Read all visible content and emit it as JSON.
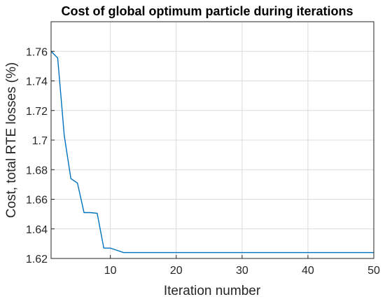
{
  "chart_data": {
    "type": "line",
    "title": "Cost of global optimum particle during iterations",
    "xlabel": "Iteration number",
    "ylabel": "Cost, total RTE losses (%)",
    "xlim": [
      1,
      50
    ],
    "ylim": [
      1.62,
      1.78
    ],
    "xticks": [
      10,
      20,
      30,
      40,
      50
    ],
    "xtick_labels": [
      "10",
      "20",
      "30",
      "40",
      "50"
    ],
    "yticks": [
      1.62,
      1.64,
      1.66,
      1.68,
      1.7,
      1.72,
      1.74,
      1.76
    ],
    "ytick_labels": [
      "1.62",
      "1.64",
      "1.66",
      "1.68",
      "1.7",
      "1.72",
      "1.74",
      "1.76"
    ],
    "grid": true,
    "color": "#0072bd",
    "series": [
      {
        "x": [
          1,
          2,
          3,
          4,
          5,
          6,
          7,
          8,
          9,
          10,
          11,
          12,
          13,
          14,
          15,
          16,
          17,
          18,
          19,
          20,
          21,
          22,
          23,
          24,
          25,
          26,
          27,
          28,
          29,
          30,
          31,
          32,
          33,
          34,
          35,
          36,
          37,
          38,
          39,
          40,
          41,
          42,
          43,
          44,
          45,
          46,
          47,
          48,
          49,
          50
        ],
        "values": [
          1.76,
          1.7555,
          1.703,
          1.674,
          1.671,
          1.651,
          1.651,
          1.6505,
          1.627,
          1.627,
          1.6255,
          1.624,
          1.624,
          1.624,
          1.624,
          1.624,
          1.624,
          1.624,
          1.624,
          1.624,
          1.624,
          1.624,
          1.624,
          1.624,
          1.624,
          1.624,
          1.624,
          1.624,
          1.624,
          1.624,
          1.624,
          1.624,
          1.624,
          1.624,
          1.624,
          1.624,
          1.624,
          1.624,
          1.624,
          1.624,
          1.624,
          1.624,
          1.624,
          1.624,
          1.624,
          1.624,
          1.624,
          1.624,
          1.624,
          1.624
        ]
      }
    ]
  }
}
